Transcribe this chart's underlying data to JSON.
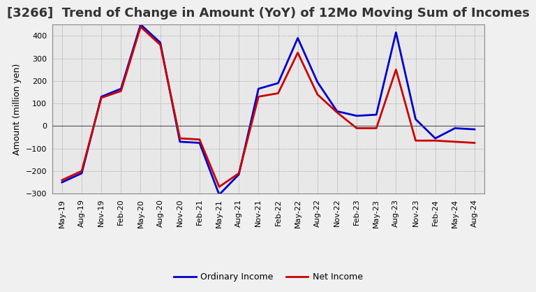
{
  "title": "[3266]  Trend of Change in Amount (YoY) of 12Mo Moving Sum of Incomes",
  "ylabel": "Amount (million yen)",
  "background_color": "#f0f0f0",
  "plot_background": "#e8e8e8",
  "grid_color": "#999999",
  "x_labels": [
    "May-19",
    "Aug-19",
    "Nov-19",
    "Feb-20",
    "May-20",
    "Aug-20",
    "Nov-20",
    "Feb-21",
    "May-21",
    "Aug-21",
    "Nov-21",
    "Feb-22",
    "May-22",
    "Aug-22",
    "Nov-22",
    "Feb-23",
    "May-23",
    "Aug-23",
    "Nov-23",
    "Feb-24",
    "May-24",
    "Aug-24"
  ],
  "ordinary_income": [
    -250,
    -210,
    130,
    165,
    450,
    370,
    -70,
    -75,
    -305,
    -215,
    165,
    190,
    390,
    195,
    65,
    45,
    50,
    415,
    30,
    -55,
    -10,
    -15
  ],
  "net_income": [
    -240,
    -200,
    125,
    155,
    440,
    360,
    -55,
    -60,
    -270,
    -210,
    130,
    145,
    325,
    140,
    60,
    -10,
    -10,
    250,
    -65,
    -65,
    -70,
    -75
  ],
  "ordinary_color": "#0000cc",
  "net_color": "#cc0000",
  "line_width": 2.0,
  "ylim_min": -300,
  "ylim_max": 450,
  "yticks": [
    -300,
    -200,
    -100,
    0,
    100,
    200,
    300,
    400
  ],
  "legend_labels": [
    "Ordinary Income",
    "Net Income"
  ],
  "title_fontsize": 13,
  "tick_fontsize": 8,
  "ylabel_fontsize": 9,
  "legend_fontsize": 9
}
